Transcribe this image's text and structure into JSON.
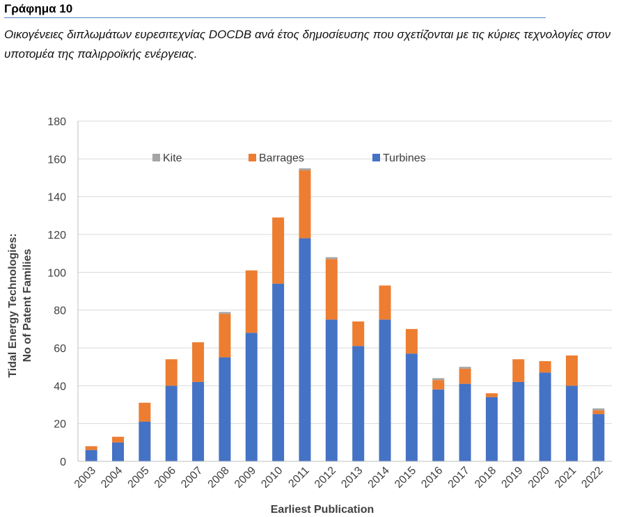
{
  "figure": {
    "label": "Γράφημα 10",
    "caption": "Οικογένειες διπλωμάτων ευρεσιτεχνίας DOCDB ανά έτος δημοσίευσης που σχετίζονται με τις κύριες τεχνολογίες στον υποτομέα της παλιρροϊκής ενέργειας."
  },
  "chart_data": {
    "type": "bar",
    "stacked": true,
    "categories": [
      "2003",
      "2004",
      "2005",
      "2006",
      "2007",
      "2008",
      "2009",
      "2010",
      "2011",
      "2012",
      "2013",
      "2014",
      "2015",
      "2016",
      "2017",
      "2018",
      "2019",
      "2020",
      "2021",
      "2022"
    ],
    "series": [
      {
        "name": "Turbines",
        "color": "#4472c4",
        "values": [
          6,
          10,
          21,
          40,
          42,
          55,
          68,
          94,
          118,
          75,
          61,
          75,
          57,
          38,
          41,
          34,
          42,
          47,
          40,
          25
        ]
      },
      {
        "name": "Barrages",
        "color": "#ed7d31",
        "values": [
          2,
          3,
          10,
          14,
          21,
          23,
          33,
          35,
          36,
          32,
          13,
          18,
          13,
          5,
          8,
          2,
          12,
          6,
          16,
          2
        ]
      },
      {
        "name": "Kite",
        "color": "#a5a5a5",
        "values": [
          0,
          0,
          0,
          0,
          0,
          1,
          0,
          0,
          1,
          1,
          0,
          0,
          0,
          1,
          1,
          0,
          0,
          0,
          0,
          1
        ]
      }
    ],
    "legend_order": [
      "Kite",
      "Barrages",
      "Turbines"
    ],
    "legend_position": "top, inside plot",
    "xlabel": "Earliest Publication",
    "ylabel_line1": "Tidal Energy Technologies:",
    "ylabel_line2": "No of Patent Families",
    "ylim": [
      0,
      180
    ],
    "yticks": [
      "0",
      "20",
      "40",
      "60",
      "80",
      "100",
      "120",
      "140",
      "160",
      "180"
    ],
    "grid": true
  }
}
